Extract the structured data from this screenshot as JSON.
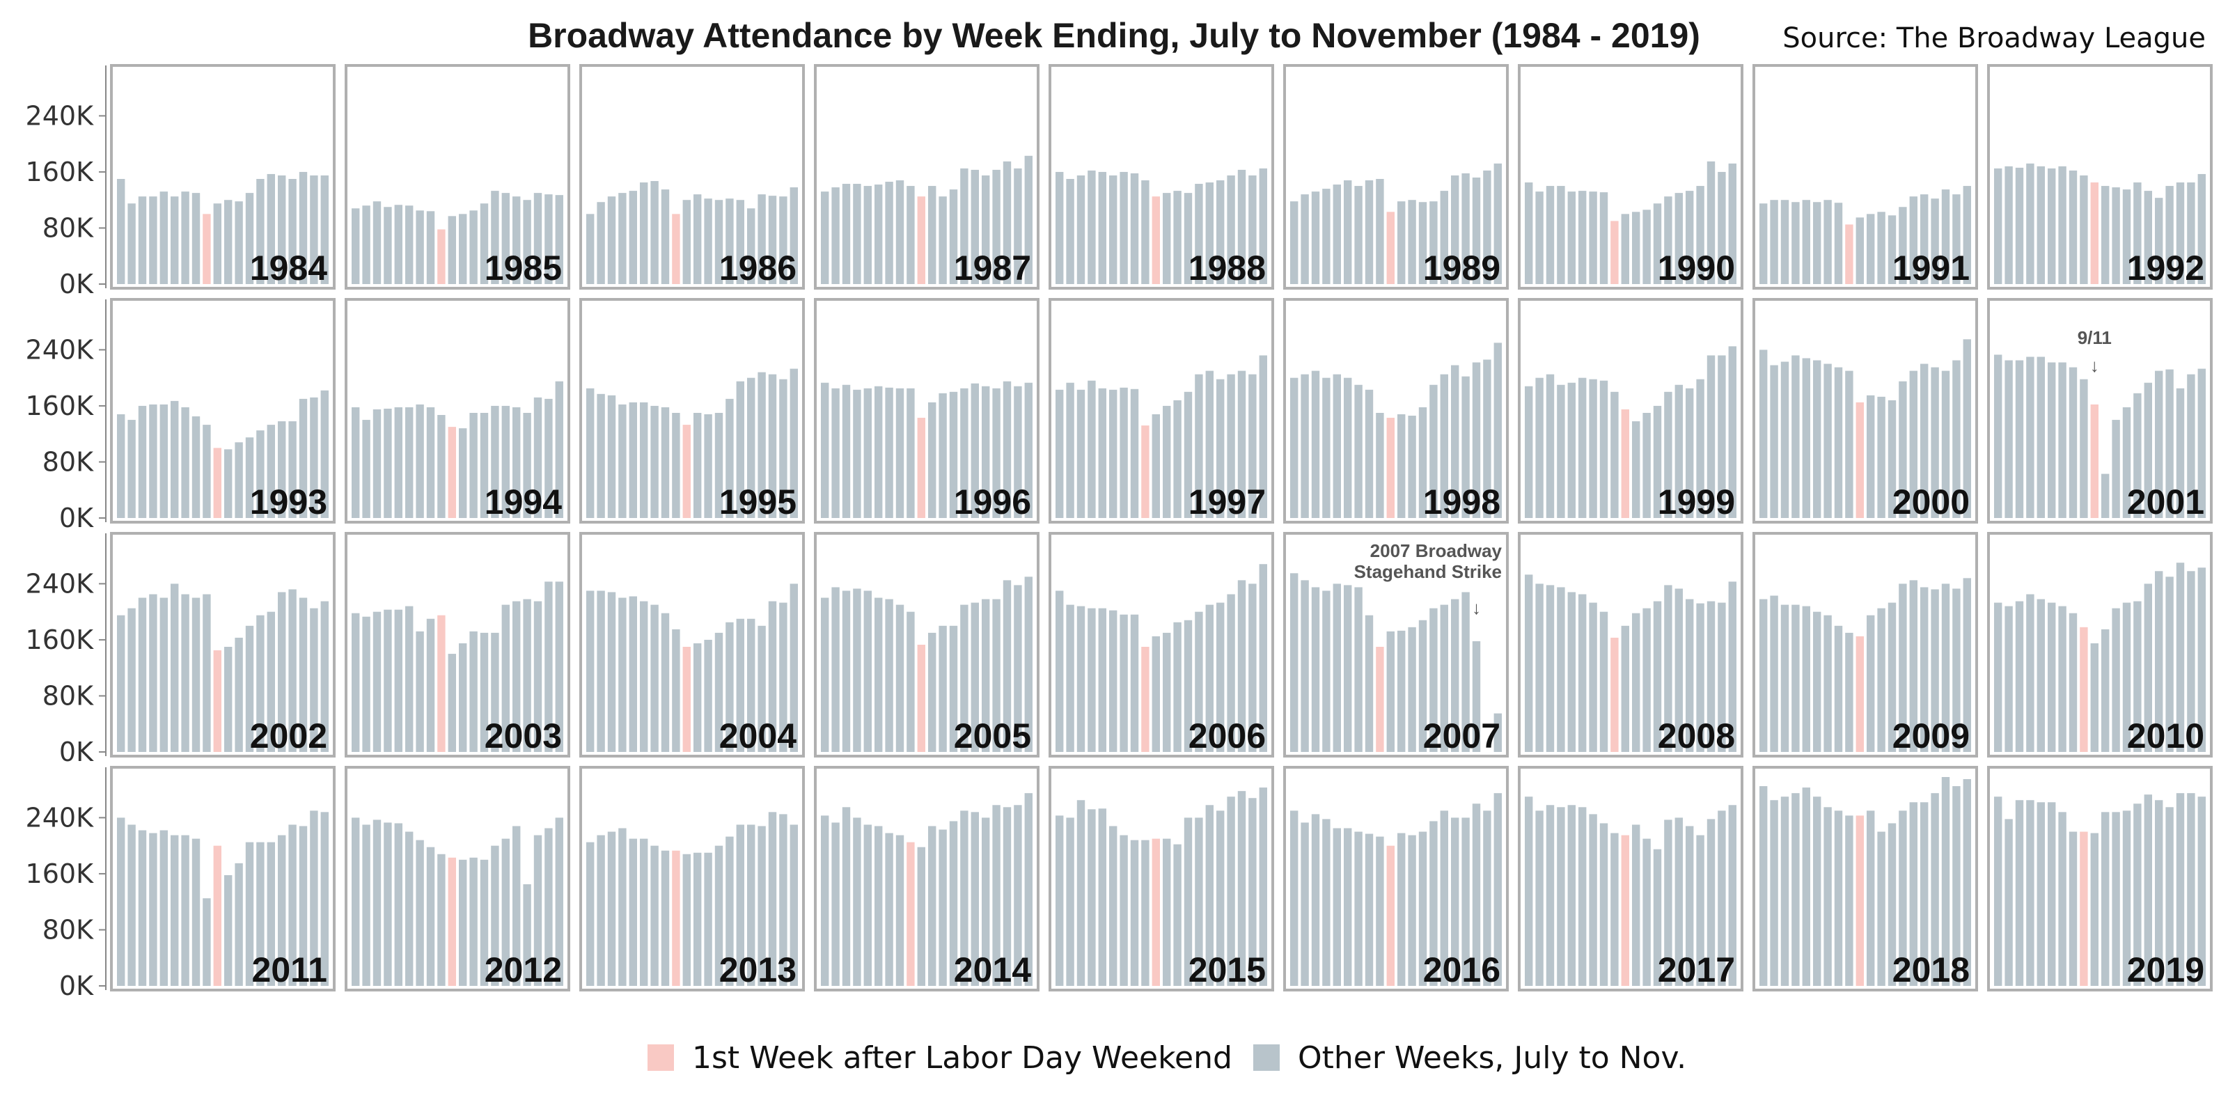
{
  "chart_data": {
    "type": "bar",
    "title": "Broadway Attendance by Week Ending, July to November (1984 - 2019)",
    "source": "Source: The Broadway League",
    "ylim": [
      0,
      300000
    ],
    "yticks": [
      0,
      80000,
      160000,
      240000
    ],
    "ytick_labels": [
      "0K",
      "80K",
      "160K",
      "240K"
    ],
    "grid": false,
    "layout": "small multiples, 4 rows x 9 columns, one panel per year",
    "legend": {
      "position": "bottom-center",
      "items": [
        {
          "label": "1st Week after Labor Day Weekend",
          "color": "#f9c9c4"
        },
        {
          "label": "Other Weeks, July to Nov.",
          "color": "#b8c4cb"
        }
      ]
    },
    "colors": {
      "highlight": "#f9c9c4",
      "other": "#b8c4cb",
      "panel_border": "#b0b0b0"
    },
    "annotations": [
      {
        "panel": "2001",
        "text": "9/11"
      },
      {
        "panel": "2007",
        "lines": [
          "2007 Broadway",
          "Stagehand Strike"
        ]
      }
    ],
    "panels": [
      {
        "year": "1984",
        "highlight_index": 8,
        "values": [
          150000,
          115000,
          125000,
          125000,
          132000,
          125000,
          132000,
          130000,
          100000,
          115000,
          120000,
          118000,
          130000,
          150000,
          157000,
          155000,
          150000,
          160000,
          155000,
          155000
        ]
      },
      {
        "year": "1985",
        "highlight_index": 8,
        "values": [
          108000,
          112000,
          118000,
          110000,
          113000,
          112000,
          105000,
          104000,
          78000,
          97000,
          100000,
          105000,
          115000,
          133000,
          130000,
          125000,
          120000,
          130000,
          128000,
          127000
        ]
      },
      {
        "year": "1986",
        "highlight_index": 8,
        "values": [
          100000,
          117000,
          125000,
          130000,
          133000,
          145000,
          147000,
          135000,
          100000,
          120000,
          128000,
          122000,
          120000,
          122000,
          120000,
          108000,
          128000,
          126000,
          125000,
          138000
        ]
      },
      {
        "year": "1987",
        "highlight_index": 9,
        "values": [
          132000,
          138000,
          143000,
          143000,
          140000,
          142000,
          146000,
          148000,
          140000,
          125000,
          140000,
          125000,
          135000,
          165000,
          163000,
          155000,
          163000,
          175000,
          165000,
          183000
        ]
      },
      {
        "year": "1988",
        "highlight_index": 9,
        "values": [
          160000,
          150000,
          155000,
          162000,
          160000,
          155000,
          160000,
          158000,
          148000,
          125000,
          130000,
          133000,
          130000,
          143000,
          145000,
          148000,
          155000,
          163000,
          155000,
          165000
        ]
      },
      {
        "year": "1989",
        "highlight_index": 9,
        "values": [
          118000,
          128000,
          132000,
          136000,
          142000,
          148000,
          140000,
          148000,
          150000,
          103000,
          118000,
          120000,
          117000,
          118000,
          133000,
          155000,
          158000,
          152000,
          162000,
          172000
        ]
      },
      {
        "year": "1990",
        "highlight_index": 8,
        "values": [
          145000,
          132000,
          140000,
          140000,
          132000,
          133000,
          132000,
          131000,
          90000,
          100000,
          103000,
          106000,
          115000,
          125000,
          130000,
          133000,
          140000,
          175000,
          160000,
          172000
        ]
      },
      {
        "year": "1991",
        "highlight_index": 8,
        "values": [
          115000,
          120000,
          120000,
          117000,
          120000,
          117000,
          120000,
          116000,
          85000,
          95000,
          100000,
          103000,
          98000,
          110000,
          125000,
          128000,
          122000,
          135000,
          128000,
          140000
        ]
      },
      {
        "year": "1992",
        "highlight_index": 9,
        "values": [
          165000,
          168000,
          166000,
          172000,
          168000,
          165000,
          168000,
          162000,
          155000,
          145000,
          140000,
          138000,
          135000,
          145000,
          133000,
          123000,
          140000,
          145000,
          145000,
          157000
        ]
      },
      {
        "year": "1993",
        "highlight_index": 9,
        "values": [
          148000,
          140000,
          160000,
          162000,
          162000,
          167000,
          158000,
          145000,
          133000,
          100000,
          98000,
          108000,
          115000,
          125000,
          133000,
          138000,
          138000,
          170000,
          172000,
          182000
        ]
      },
      {
        "year": "1994",
        "highlight_index": 9,
        "values": [
          158000,
          140000,
          155000,
          156000,
          158000,
          158000,
          162000,
          158000,
          147000,
          130000,
          128000,
          150000,
          150000,
          160000,
          160000,
          158000,
          150000,
          172000,
          170000,
          195000
        ]
      },
      {
        "year": "1995",
        "highlight_index": 9,
        "values": [
          185000,
          177000,
          175000,
          162000,
          165000,
          165000,
          160000,
          158000,
          150000,
          133000,
          150000,
          148000,
          150000,
          170000,
          195000,
          200000,
          208000,
          205000,
          198000,
          213000
        ]
      },
      {
        "year": "1996",
        "highlight_index": 9,
        "values": [
          193000,
          185000,
          190000,
          183000,
          185000,
          188000,
          186000,
          185000,
          185000,
          143000,
          165000,
          178000,
          180000,
          185000,
          192000,
          188000,
          185000,
          195000,
          188000,
          193000
        ]
      },
      {
        "year": "1997",
        "highlight_index": 8,
        "values": [
          183000,
          193000,
          183000,
          196000,
          185000,
          183000,
          186000,
          184000,
          132000,
          148000,
          160000,
          168000,
          180000,
          205000,
          210000,
          198000,
          205000,
          210000,
          205000,
          232000
        ]
      },
      {
        "year": "1998",
        "highlight_index": 9,
        "values": [
          200000,
          205000,
          210000,
          200000,
          205000,
          200000,
          190000,
          183000,
          150000,
          143000,
          148000,
          146000,
          158000,
          190000,
          205000,
          218000,
          202000,
          222000,
          226000,
          250000
        ]
      },
      {
        "year": "1999",
        "highlight_index": 9,
        "values": [
          188000,
          200000,
          205000,
          190000,
          193000,
          200000,
          198000,
          196000,
          180000,
          155000,
          138000,
          150000,
          160000,
          180000,
          190000,
          185000,
          198000,
          232000,
          232000,
          245000
        ]
      },
      {
        "year": "2000",
        "highlight_index": 9,
        "values": [
          240000,
          218000,
          223000,
          232000,
          228000,
          225000,
          220000,
          215000,
          210000,
          165000,
          175000,
          173000,
          168000,
          195000,
          210000,
          220000,
          215000,
          210000,
          225000,
          255000
        ]
      },
      {
        "year": "2001",
        "highlight_index": 9,
        "values": [
          233000,
          225000,
          225000,
          230000,
          230000,
          222000,
          222000,
          215000,
          198000,
          162000,
          63000,
          140000,
          158000,
          178000,
          193000,
          210000,
          212000,
          185000,
          205000,
          213000
        ]
      },
      {
        "year": "2002",
        "highlight_index": 9,
        "values": [
          195000,
          205000,
          220000,
          225000,
          220000,
          240000,
          225000,
          220000,
          225000,
          145000,
          150000,
          163000,
          180000,
          195000,
          200000,
          228000,
          232000,
          220000,
          205000,
          215000
        ]
      },
      {
        "year": "2003",
        "highlight_index": 8,
        "values": [
          198000,
          193000,
          200000,
          203000,
          203000,
          208000,
          172000,
          190000,
          195000,
          140000,
          155000,
          172000,
          170000,
          170000,
          210000,
          215000,
          218000,
          215000,
          243000,
          243000
        ]
      },
      {
        "year": "2004",
        "highlight_index": 9,
        "values": [
          230000,
          230000,
          228000,
          220000,
          222000,
          215000,
          210000,
          198000,
          175000,
          150000,
          155000,
          160000,
          170000,
          185000,
          190000,
          190000,
          180000,
          215000,
          213000,
          240000
        ]
      },
      {
        "year": "2005",
        "highlight_index": 9,
        "values": [
          220000,
          235000,
          230000,
          233000,
          230000,
          220000,
          218000,
          210000,
          200000,
          153000,
          170000,
          180000,
          180000,
          210000,
          213000,
          218000,
          218000,
          245000,
          238000,
          250000
        ]
      },
      {
        "year": "2006",
        "highlight_index": 8,
        "values": [
          230000,
          210000,
          208000,
          205000,
          205000,
          202000,
          196000,
          196000,
          150000,
          165000,
          170000,
          185000,
          188000,
          200000,
          210000,
          213000,
          225000,
          245000,
          240000,
          268000
        ]
      },
      {
        "year": "2007",
        "highlight_index": 8,
        "values": [
          255000,
          245000,
          235000,
          230000,
          240000,
          238000,
          235000,
          195000,
          150000,
          172000,
          173000,
          178000,
          188000,
          205000,
          210000,
          218000,
          228000,
          158000,
          0,
          55000
        ]
      },
      {
        "year": "2008",
        "highlight_index": 8,
        "values": [
          253000,
          240000,
          238000,
          235000,
          228000,
          225000,
          213000,
          200000,
          163000,
          180000,
          198000,
          205000,
          215000,
          238000,
          233000,
          218000,
          212000,
          215000,
          213000,
          243000
        ]
      },
      {
        "year": "2009",
        "highlight_index": 9,
        "values": [
          218000,
          223000,
          210000,
          210000,
          208000,
          200000,
          195000,
          180000,
          170000,
          165000,
          195000,
          205000,
          213000,
          240000,
          245000,
          235000,
          232000,
          240000,
          233000,
          248000
        ]
      },
      {
        "year": "2010",
        "highlight_index": 8,
        "values": [
          213000,
          208000,
          215000,
          225000,
          218000,
          213000,
          208000,
          198000,
          178000,
          155000,
          175000,
          205000,
          213000,
          215000,
          240000,
          258000,
          250000,
          270000,
          258000,
          263000
        ]
      },
      {
        "year": "2011",
        "highlight_index": 9,
        "values": [
          240000,
          230000,
          222000,
          218000,
          222000,
          215000,
          215000,
          210000,
          125000,
          200000,
          158000,
          175000,
          205000,
          205000,
          205000,
          215000,
          230000,
          228000,
          250000,
          248000
        ]
      },
      {
        "year": "2012",
        "highlight_index": 9,
        "values": [
          240000,
          230000,
          237000,
          233000,
          232000,
          220000,
          208000,
          198000,
          188000,
          183000,
          180000,
          183000,
          180000,
          200000,
          210000,
          228000,
          145000,
          215000,
          225000,
          240000
        ]
      },
      {
        "year": "2013",
        "highlight_index": 8,
        "values": [
          205000,
          215000,
          220000,
          225000,
          210000,
          210000,
          200000,
          193000,
          193000,
          188000,
          190000,
          190000,
          200000,
          213000,
          230000,
          230000,
          228000,
          248000,
          245000,
          230000
        ]
      },
      {
        "year": "2014",
        "highlight_index": 8,
        "values": [
          243000,
          233000,
          255000,
          240000,
          230000,
          228000,
          218000,
          215000,
          205000,
          198000,
          228000,
          223000,
          235000,
          250000,
          248000,
          240000,
          258000,
          255000,
          258000,
          275000
        ]
      },
      {
        "year": "2015",
        "highlight_index": 9,
        "values": [
          243000,
          240000,
          265000,
          252000,
          253000,
          228000,
          215000,
          208000,
          208000,
          210000,
          210000,
          202000,
          240000,
          240000,
          258000,
          250000,
          270000,
          278000,
          268000,
          283000
        ]
      },
      {
        "year": "2016",
        "highlight_index": 9,
        "values": [
          250000,
          233000,
          245000,
          238000,
          225000,
          225000,
          220000,
          217000,
          213000,
          200000,
          218000,
          215000,
          220000,
          235000,
          250000,
          240000,
          240000,
          260000,
          250000,
          275000
        ]
      },
      {
        "year": "2017",
        "highlight_index": 9,
        "values": [
          270000,
          250000,
          258000,
          255000,
          258000,
          255000,
          245000,
          232000,
          218000,
          215000,
          230000,
          210000,
          195000,
          237000,
          240000,
          228000,
          215000,
          238000,
          250000,
          258000
        ]
      },
      {
        "year": "2018",
        "highlight_index": 9,
        "values": [
          285000,
          265000,
          270000,
          275000,
          283000,
          270000,
          255000,
          250000,
          243000,
          243000,
          250000,
          220000,
          232000,
          250000,
          262000,
          262000,
          275000,
          298000,
          285000,
          295000
        ]
      },
      {
        "year": "2019",
        "highlight_index": 8,
        "values": [
          270000,
          238000,
          265000,
          265000,
          262000,
          262000,
          248000,
          220000,
          220000,
          218000,
          248000,
          248000,
          250000,
          260000,
          273000,
          265000,
          255000,
          275000,
          275000,
          270000
        ]
      }
    ]
  }
}
